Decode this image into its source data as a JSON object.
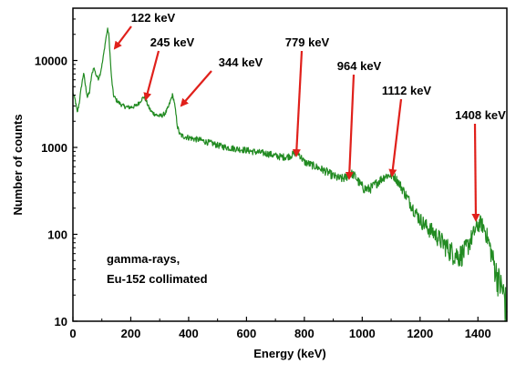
{
  "chart_data": {
    "type": "line",
    "xlabel": "Energy (keV)",
    "ylabel": "Number of counts",
    "xlim": [
      0,
      1500
    ],
    "ylim": [
      10,
      40000
    ],
    "yscale": "log",
    "grid": false,
    "x_ticks": [
      0,
      200,
      400,
      600,
      800,
      1000,
      1200,
      1400
    ],
    "y_ticks": [
      {
        "value": 10,
        "label": "10"
      },
      {
        "value": 100,
        "label": "100"
      },
      {
        "value": 1000,
        "label": "1000"
      },
      {
        "value": 10000,
        "label": "10000"
      }
    ],
    "annotation_lines": [
      "gamma-rays,",
      "Eu-152 collimated"
    ],
    "peaks": [
      {
        "label": "122 keV",
        "energy": 122,
        "counts": 16000
      },
      {
        "label": "245 keV",
        "energy": 245,
        "counts": 3500
      },
      {
        "label": "344 keV",
        "energy": 344,
        "counts": 3000
      },
      {
        "label": "779 keV",
        "energy": 779,
        "counts": 800
      },
      {
        "label": "964 keV",
        "energy": 964,
        "counts": 520
      },
      {
        "label": "1112 keV",
        "energy": 1112,
        "counts": 440
      },
      {
        "label": "1408 keV",
        "energy": 1408,
        "counts": 140
      }
    ],
    "series": [
      {
        "color": "#228b22",
        "points": [
          [
            0,
            4200
          ],
          [
            8,
            3500
          ],
          [
            15,
            2500
          ],
          [
            22,
            3300
          ],
          [
            30,
            5200
          ],
          [
            37,
            7200
          ],
          [
            43,
            5200
          ],
          [
            50,
            3800
          ],
          [
            57,
            4300
          ],
          [
            64,
            6500
          ],
          [
            72,
            8400
          ],
          [
            80,
            6800
          ],
          [
            88,
            6200
          ],
          [
            95,
            7200
          ],
          [
            102,
            9500
          ],
          [
            108,
            13000
          ],
          [
            114,
            18000
          ],
          [
            120,
            23000
          ],
          [
            124,
            20000
          ],
          [
            128,
            12000
          ],
          [
            133,
            6500
          ],
          [
            140,
            4000
          ],
          [
            150,
            3500
          ],
          [
            160,
            3250
          ],
          [
            170,
            3050
          ],
          [
            180,
            2950
          ],
          [
            190,
            2900
          ],
          [
            200,
            2900
          ],
          [
            210,
            2950
          ],
          [
            220,
            3050
          ],
          [
            230,
            3300
          ],
          [
            238,
            3600
          ],
          [
            245,
            3800
          ],
          [
            252,
            3550
          ],
          [
            260,
            3000
          ],
          [
            270,
            2600
          ],
          [
            280,
            2450
          ],
          [
            290,
            2350
          ],
          [
            300,
            2300
          ],
          [
            310,
            2350
          ],
          [
            320,
            2500
          ],
          [
            330,
            2900
          ],
          [
            338,
            3500
          ],
          [
            344,
            4000
          ],
          [
            350,
            3400
          ],
          [
            356,
            2400
          ],
          [
            362,
            1700
          ],
          [
            370,
            1400
          ],
          [
            380,
            1350
          ],
          [
            400,
            1300
          ],
          [
            420,
            1250
          ],
          [
            440,
            1220
          ],
          [
            460,
            1160
          ],
          [
            480,
            1120
          ],
          [
            500,
            1060
          ],
          [
            520,
            1020
          ],
          [
            540,
            990
          ],
          [
            560,
            970
          ],
          [
            580,
            950
          ],
          [
            600,
            930
          ],
          [
            620,
            900
          ],
          [
            640,
            880
          ],
          [
            660,
            860
          ],
          [
            680,
            840
          ],
          [
            700,
            800
          ],
          [
            720,
            780
          ],
          [
            740,
            780
          ],
          [
            755,
            810
          ],
          [
            765,
            860
          ],
          [
            775,
            890
          ],
          [
            782,
            840
          ],
          [
            790,
            760
          ],
          [
            800,
            680
          ],
          [
            820,
            640
          ],
          [
            840,
            600
          ],
          [
            860,
            560
          ],
          [
            880,
            520
          ],
          [
            900,
            470
          ],
          [
            920,
            440
          ],
          [
            935,
            440
          ],
          [
            950,
            470
          ],
          [
            964,
            500
          ],
          [
            975,
            470
          ],
          [
            990,
            390
          ],
          [
            1005,
            340
          ],
          [
            1020,
            330
          ],
          [
            1035,
            350
          ],
          [
            1050,
            390
          ],
          [
            1065,
            430
          ],
          [
            1080,
            470
          ],
          [
            1095,
            480
          ],
          [
            1112,
            460
          ],
          [
            1125,
            400
          ],
          [
            1140,
            330
          ],
          [
            1160,
            250
          ],
          [
            1180,
            190
          ],
          [
            1200,
            150
          ],
          [
            1220,
            125
          ],
          [
            1240,
            110
          ],
          [
            1260,
            95
          ],
          [
            1280,
            80
          ],
          [
            1300,
            68
          ],
          [
            1320,
            60
          ],
          [
            1335,
            58
          ],
          [
            1350,
            62
          ],
          [
            1365,
            75
          ],
          [
            1380,
            95
          ],
          [
            1395,
            120
          ],
          [
            1408,
            138
          ],
          [
            1418,
            125
          ],
          [
            1430,
            100
          ],
          [
            1445,
            65
          ],
          [
            1460,
            40
          ],
          [
            1475,
            28
          ],
          [
            1487,
            22
          ],
          [
            1494,
            18
          ],
          [
            1500,
            13
          ]
        ]
      }
    ]
  }
}
